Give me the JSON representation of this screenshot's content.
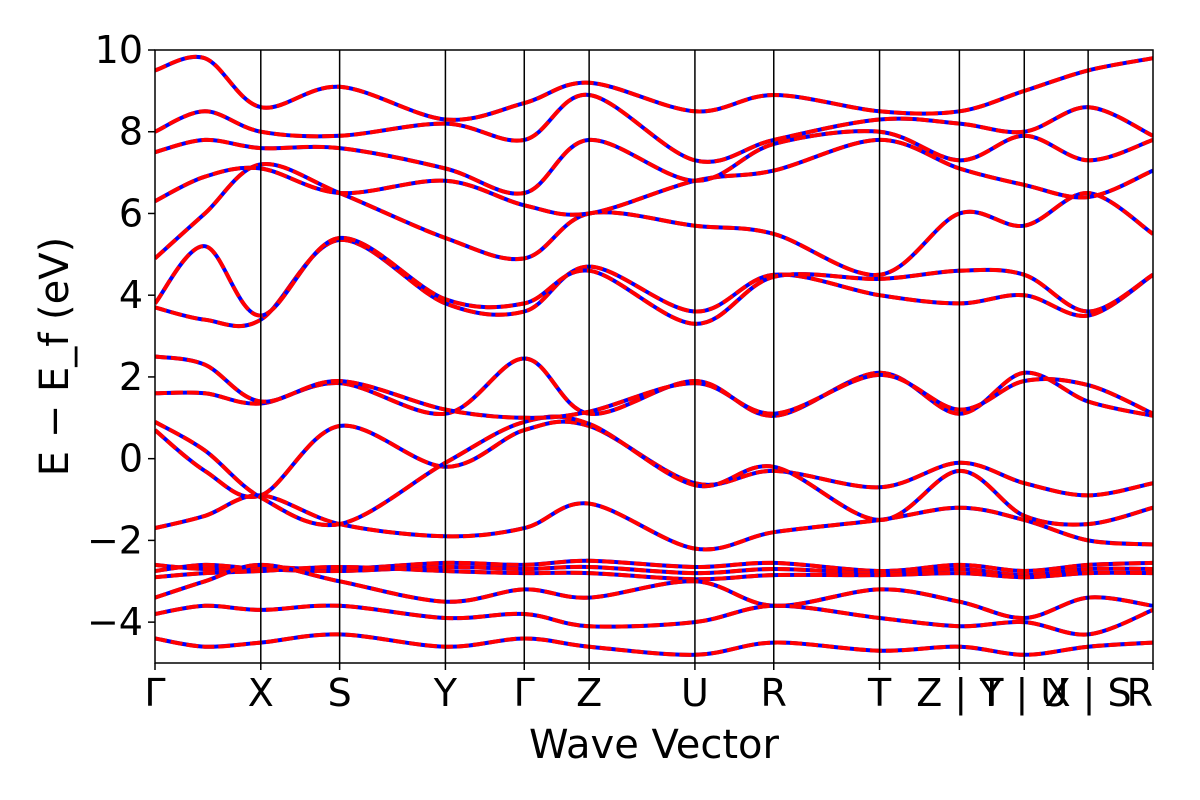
{
  "chart_data": {
    "type": "line",
    "title": "",
    "xlabel": "Wave Vector",
    "ylabel": "E − E_f (eV)",
    "ylim": [
      -5,
      10
    ],
    "y_ticks": [
      -4,
      -2,
      0,
      2,
      4,
      6,
      8,
      10
    ],
    "y_tick_labels": [
      "−4",
      "−2",
      "0",
      "2",
      "4",
      "6",
      "8",
      "10"
    ],
    "k_points": [
      {
        "label": "Γ",
        "k": 0.0
      },
      {
        "label": "X",
        "k": 0.106
      },
      {
        "label": "S",
        "k": 0.185
      },
      {
        "label": "Y",
        "k": 0.291
      },
      {
        "label": "Γ",
        "k": 0.37
      },
      {
        "label": "Z",
        "k": 0.435
      },
      {
        "label": "U",
        "k": 0.541
      },
      {
        "label": "R",
        "k": 0.62
      },
      {
        "label": "T",
        "k": 0.726
      },
      {
        "label": "Z | Y",
        "k": 0.806
      },
      {
        "label": "T | U",
        "k": 0.871
      },
      {
        "label": "X | S",
        "k": 0.935
      },
      {
        "label": "R",
        "k": 1.0
      }
    ],
    "xlim": [
      0.0,
      1.0
    ],
    "series_styles": {
      "reference": {
        "color": "#0000ff",
        "style": "solid"
      },
      "overlay": {
        "color": "#ff0000",
        "style": "dashed"
      }
    },
    "bands": [
      {
        "points": [
          [
            0.0,
            -2.6
          ],
          [
            0.05,
            -2.7
          ],
          [
            0.106,
            -2.65
          ],
          [
            0.185,
            -2.7
          ],
          [
            0.291,
            -2.55
          ],
          [
            0.37,
            -2.6
          ],
          [
            0.435,
            -2.5
          ],
          [
            0.541,
            -2.65
          ],
          [
            0.62,
            -2.55
          ],
          [
            0.726,
            -2.75
          ],
          [
            0.806,
            -2.6
          ],
          [
            0.871,
            -2.75
          ],
          [
            0.935,
            -2.6
          ],
          [
            1.0,
            -2.55
          ]
        ]
      },
      {
        "points": [
          [
            0.0,
            -2.75
          ],
          [
            0.05,
            -2.6
          ],
          [
            0.106,
            -2.7
          ],
          [
            0.185,
            -2.75
          ],
          [
            0.291,
            -2.65
          ],
          [
            0.37,
            -2.7
          ],
          [
            0.435,
            -2.65
          ],
          [
            0.541,
            -2.8
          ],
          [
            0.62,
            -2.7
          ],
          [
            0.726,
            -2.8
          ],
          [
            0.806,
            -2.7
          ],
          [
            0.871,
            -2.85
          ],
          [
            0.935,
            -2.7
          ],
          [
            1.0,
            -2.7
          ]
        ]
      },
      {
        "points": [
          [
            0.0,
            -2.9
          ],
          [
            0.05,
            -2.8
          ],
          [
            0.106,
            -2.75
          ],
          [
            0.185,
            -2.65
          ],
          [
            0.291,
            -2.75
          ],
          [
            0.37,
            -2.8
          ],
          [
            0.435,
            -2.8
          ],
          [
            0.541,
            -2.95
          ],
          [
            0.62,
            -2.85
          ],
          [
            0.726,
            -2.85
          ],
          [
            0.806,
            -2.8
          ],
          [
            0.871,
            -2.9
          ],
          [
            0.935,
            -2.8
          ],
          [
            1.0,
            -2.8
          ]
        ]
      },
      {
        "points": [
          [
            0.0,
            -3.4
          ],
          [
            0.05,
            -3.0
          ],
          [
            0.106,
            -2.6
          ],
          [
            0.185,
            -3.0
          ],
          [
            0.291,
            -3.5
          ],
          [
            0.37,
            -3.2
          ],
          [
            0.435,
            -3.4
          ],
          [
            0.541,
            -3.0
          ],
          [
            0.62,
            -3.6
          ],
          [
            0.726,
            -3.2
          ],
          [
            0.806,
            -3.5
          ],
          [
            0.871,
            -3.9
          ],
          [
            0.935,
            -3.4
          ],
          [
            1.0,
            -3.6
          ]
        ]
      },
      {
        "points": [
          [
            0.0,
            -3.8
          ],
          [
            0.05,
            -3.6
          ],
          [
            0.106,
            -3.7
          ],
          [
            0.185,
            -3.6
          ],
          [
            0.291,
            -3.9
          ],
          [
            0.37,
            -3.8
          ],
          [
            0.435,
            -4.1
          ],
          [
            0.541,
            -4.0
          ],
          [
            0.62,
            -3.6
          ],
          [
            0.726,
            -3.9
          ],
          [
            0.806,
            -4.1
          ],
          [
            0.871,
            -4.0
          ],
          [
            0.935,
            -4.3
          ],
          [
            1.0,
            -3.7
          ]
        ]
      },
      {
        "points": [
          [
            0.0,
            -4.4
          ],
          [
            0.05,
            -4.6
          ],
          [
            0.106,
            -4.5
          ],
          [
            0.185,
            -4.3
          ],
          [
            0.291,
            -4.6
          ],
          [
            0.37,
            -4.4
          ],
          [
            0.435,
            -4.6
          ],
          [
            0.541,
            -4.8
          ],
          [
            0.62,
            -4.5
          ],
          [
            0.726,
            -4.7
          ],
          [
            0.806,
            -4.6
          ],
          [
            0.871,
            -4.8
          ],
          [
            0.935,
            -4.6
          ],
          [
            1.0,
            -4.5
          ]
        ]
      },
      {
        "points": [
          [
            0.0,
            -1.7
          ],
          [
            0.05,
            -1.4
          ],
          [
            0.106,
            -0.9
          ],
          [
            0.185,
            -1.6
          ],
          [
            0.291,
            -1.9
          ],
          [
            0.37,
            -1.7
          ],
          [
            0.435,
            -1.1
          ],
          [
            0.541,
            -2.2
          ],
          [
            0.62,
            -1.8
          ],
          [
            0.726,
            -1.5
          ],
          [
            0.806,
            -1.2
          ],
          [
            0.871,
            -1.5
          ],
          [
            0.935,
            -2.0
          ],
          [
            1.0,
            -2.1
          ]
        ]
      },
      {
        "points": [
          [
            0.0,
            0.7
          ],
          [
            0.05,
            -0.3
          ],
          [
            0.106,
            -0.9
          ],
          [
            0.185,
            0.8
          ],
          [
            0.291,
            -0.2
          ],
          [
            0.37,
            0.7
          ],
          [
            0.435,
            0.8
          ],
          [
            0.541,
            -0.6
          ],
          [
            0.62,
            -0.3
          ],
          [
            0.726,
            -0.7
          ],
          [
            0.806,
            -0.1
          ],
          [
            0.871,
            -0.6
          ],
          [
            0.935,
            -0.9
          ],
          [
            1.0,
            -0.6
          ]
        ]
      },
      {
        "points": [
          [
            0.0,
            0.9
          ],
          [
            0.05,
            0.2
          ],
          [
            0.106,
            -0.95
          ],
          [
            0.185,
            -1.6
          ],
          [
            0.291,
            -0.1
          ],
          [
            0.37,
            0.9
          ],
          [
            0.435,
            0.85
          ],
          [
            0.541,
            -0.65
          ],
          [
            0.62,
            -0.2
          ],
          [
            0.726,
            -1.5
          ],
          [
            0.806,
            -0.3
          ],
          [
            0.871,
            -1.4
          ],
          [
            0.935,
            -1.6
          ],
          [
            1.0,
            -1.2
          ]
        ]
      },
      {
        "points": [
          [
            0.0,
            1.6
          ],
          [
            0.05,
            1.6
          ],
          [
            0.106,
            1.35
          ],
          [
            0.185,
            1.85
          ],
          [
            0.291,
            1.1
          ],
          [
            0.37,
            2.45
          ],
          [
            0.435,
            1.1
          ],
          [
            0.541,
            1.9
          ],
          [
            0.62,
            1.05
          ],
          [
            0.726,
            2.1
          ],
          [
            0.806,
            1.1
          ],
          [
            0.871,
            2.1
          ],
          [
            0.935,
            1.4
          ],
          [
            1.0,
            1.05
          ]
        ]
      },
      {
        "points": [
          [
            0.0,
            2.5
          ],
          [
            0.05,
            2.3
          ],
          [
            0.106,
            1.4
          ],
          [
            0.185,
            1.9
          ],
          [
            0.291,
            1.2
          ],
          [
            0.37,
            1.0
          ],
          [
            0.435,
            1.15
          ],
          [
            0.541,
            1.85
          ],
          [
            0.62,
            1.1
          ],
          [
            0.726,
            2.05
          ],
          [
            0.806,
            1.2
          ],
          [
            0.871,
            1.9
          ],
          [
            0.935,
            1.8
          ],
          [
            1.0,
            1.1
          ]
        ]
      },
      {
        "points": [
          [
            0.0,
            3.7
          ],
          [
            0.05,
            3.4
          ],
          [
            0.106,
            3.4
          ],
          [
            0.185,
            5.35
          ],
          [
            0.291,
            3.8
          ],
          [
            0.37,
            3.6
          ],
          [
            0.435,
            4.7
          ],
          [
            0.541,
            3.6
          ],
          [
            0.62,
            4.5
          ],
          [
            0.726,
            4.0
          ],
          [
            0.806,
            3.8
          ],
          [
            0.871,
            4.0
          ],
          [
            0.935,
            3.5
          ],
          [
            1.0,
            4.5
          ]
        ]
      },
      {
        "points": [
          [
            0.0,
            3.8
          ],
          [
            0.05,
            5.2
          ],
          [
            0.106,
            3.5
          ],
          [
            0.185,
            5.4
          ],
          [
            0.291,
            3.9
          ],
          [
            0.37,
            3.8
          ],
          [
            0.435,
            4.6
          ],
          [
            0.541,
            3.3
          ],
          [
            0.62,
            4.45
          ],
          [
            0.726,
            4.4
          ],
          [
            0.806,
            4.6
          ],
          [
            0.871,
            4.5
          ],
          [
            0.935,
            3.6
          ],
          [
            1.0,
            4.5
          ]
        ]
      },
      {
        "points": [
          [
            0.0,
            4.9
          ],
          [
            0.05,
            6.0
          ],
          [
            0.106,
            7.2
          ],
          [
            0.185,
            6.5
          ],
          [
            0.291,
            5.4
          ],
          [
            0.37,
            4.9
          ],
          [
            0.435,
            6.0
          ],
          [
            0.541,
            5.7
          ],
          [
            0.62,
            5.5
          ],
          [
            0.726,
            4.5
          ],
          [
            0.806,
            6.0
          ],
          [
            0.871,
            5.7
          ],
          [
            0.935,
            6.5
          ],
          [
            1.0,
            5.5
          ]
        ]
      },
      {
        "points": [
          [
            0.0,
            6.3
          ],
          [
            0.05,
            6.9
          ],
          [
            0.106,
            7.1
          ],
          [
            0.185,
            6.5
          ],
          [
            0.291,
            6.8
          ],
          [
            0.37,
            6.2
          ],
          [
            0.435,
            6.0
          ],
          [
            0.541,
            6.8
          ],
          [
            0.62,
            7.05
          ],
          [
            0.726,
            7.8
          ],
          [
            0.806,
            7.1
          ],
          [
            0.871,
            6.7
          ],
          [
            0.935,
            6.4
          ],
          [
            1.0,
            7.05
          ]
        ]
      },
      {
        "points": [
          [
            0.0,
            7.5
          ],
          [
            0.05,
            7.8
          ],
          [
            0.106,
            7.6
          ],
          [
            0.185,
            7.6
          ],
          [
            0.291,
            7.1
          ],
          [
            0.37,
            6.5
          ],
          [
            0.435,
            7.8
          ],
          [
            0.541,
            6.8
          ],
          [
            0.62,
            7.7
          ],
          [
            0.726,
            8.0
          ],
          [
            0.806,
            7.3
          ],
          [
            0.871,
            7.9
          ],
          [
            0.935,
            7.3
          ],
          [
            1.0,
            7.8
          ]
        ]
      },
      {
        "points": [
          [
            0.0,
            8.0
          ],
          [
            0.05,
            8.5
          ],
          [
            0.106,
            8.0
          ],
          [
            0.185,
            7.9
          ],
          [
            0.291,
            8.2
          ],
          [
            0.37,
            7.8
          ],
          [
            0.435,
            8.9
          ],
          [
            0.541,
            7.3
          ],
          [
            0.62,
            7.8
          ],
          [
            0.726,
            8.3
          ],
          [
            0.806,
            8.2
          ],
          [
            0.871,
            8.0
          ],
          [
            0.935,
            8.6
          ],
          [
            1.0,
            7.9
          ]
        ]
      },
      {
        "points": [
          [
            0.0,
            9.5
          ],
          [
            0.05,
            9.8
          ],
          [
            0.106,
            8.6
          ],
          [
            0.185,
            9.1
          ],
          [
            0.291,
            8.3
          ],
          [
            0.37,
            8.7
          ],
          [
            0.435,
            9.2
          ],
          [
            0.541,
            8.5
          ],
          [
            0.62,
            8.9
          ],
          [
            0.726,
            8.5
          ],
          [
            0.806,
            8.5
          ],
          [
            0.871,
            9.0
          ],
          [
            0.935,
            9.5
          ],
          [
            1.0,
            9.8
          ]
        ]
      }
    ]
  }
}
